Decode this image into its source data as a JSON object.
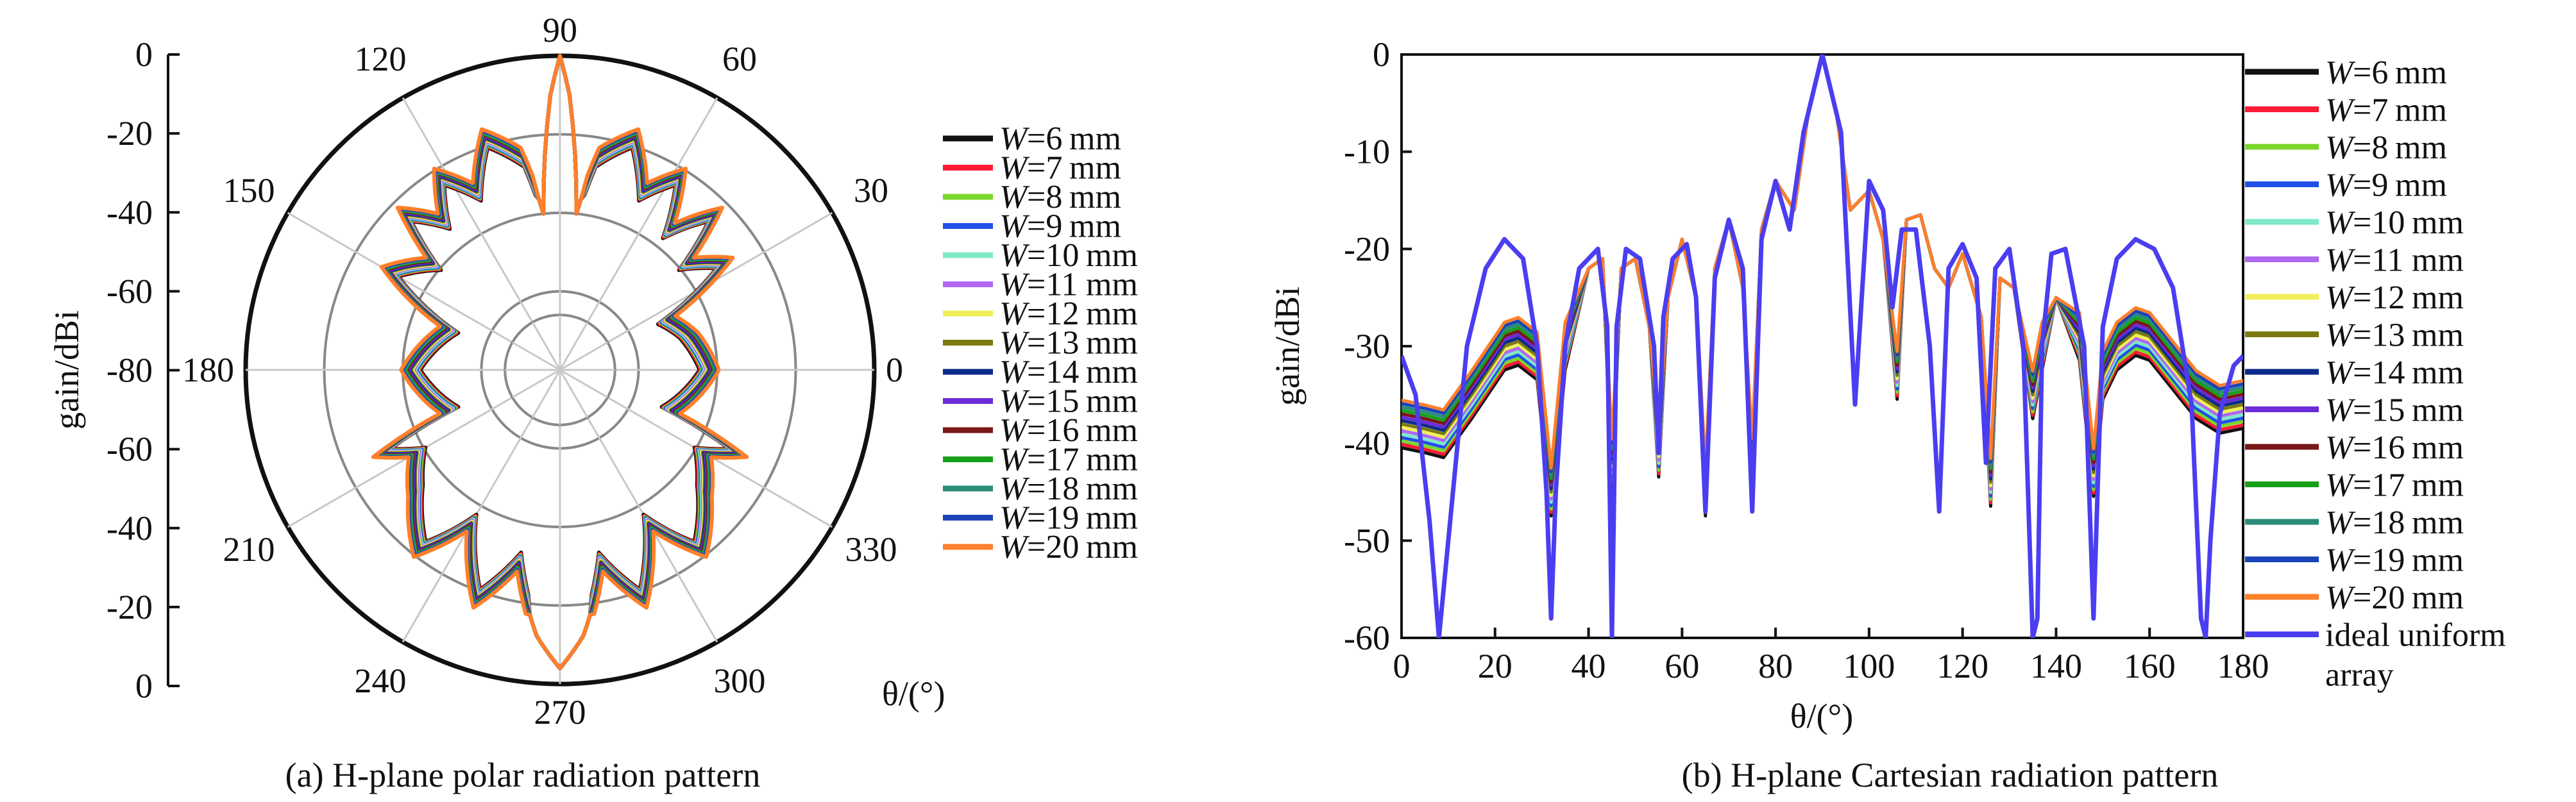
{
  "captions": {
    "polar": "(a) H-plane polar radiation pattern",
    "cartesian": "(b) H-plane Cartesian radiation pattern"
  },
  "legend": {
    "var": "W",
    "unit": "mm",
    "values": [
      "=6",
      "=7",
      "=8",
      "=9",
      "=10",
      "=11",
      "=12",
      "=13",
      "=14",
      "=15",
      "=16",
      "=17",
      "=18",
      "=19",
      "=20"
    ],
    "ideal_line1": "ideal uniform",
    "ideal_line2": "array"
  },
  "colors": {
    "series": [
      "#111111",
      "#ff1a35",
      "#7bd62a",
      "#1f4fe8",
      "#7fe8c8",
      "#b067f2",
      "#f0ef5a",
      "#7a7a10",
      "#0c2b8c",
      "#6c2bd8",
      "#7a1717",
      "#19a019",
      "#2b8c7a",
      "#1a44b8",
      "#ff7f2a"
    ],
    "ideal": "#4a3ef0",
    "grid": "#888888"
  },
  "chart_data": [
    {
      "type": "polar-line",
      "title": "(a) H-plane polar radiation pattern",
      "ylabel": "gain/dBi",
      "xlabel": "θ/(°)",
      "radial_ticks": [
        "0",
        "-20",
        "-40",
        "-60",
        "-80",
        "-60",
        "-40",
        "-20",
        "0"
      ],
      "angle_ticks": [
        "0",
        "30",
        "60",
        "90",
        "120",
        "150",
        "180",
        "210",
        "240",
        "270",
        "300",
        "330"
      ],
      "rlim": [
        -80,
        0
      ],
      "grid": true,
      "legend": "right",
      "series_names": [
        "W=6 mm",
        "W=7 mm",
        "W=8 mm",
        "W=9 mm",
        "W=10 mm",
        "W=11 mm",
        "W=12 mm",
        "W=13 mm",
        "W=14 mm",
        "W=15 mm",
        "W=16 mm",
        "W=17 mm",
        "W=18 mm",
        "W=19 mm",
        "W=20 mm"
      ],
      "series": [
        {
          "name": "W=20 mm",
          "theta": [
            0,
            15,
            25,
            33,
            40,
            45,
            52,
            58,
            65,
            72,
            80,
            84,
            88,
            90,
            92,
            96,
            100,
            108,
            115,
            122,
            128,
            135,
            140,
            150,
            160,
            170,
            180,
            190,
            200,
            205,
            210,
            220,
            232,
            240,
            250,
            258,
            265,
            270,
            275,
            282,
            290,
            300,
            308,
            320,
            330,
            335,
            340,
            350,
            360
          ],
          "gain": [
            -42,
            -46,
            -50,
            -30,
            -38,
            -24,
            -35,
            -22,
            -30,
            -18,
            -25,
            -40,
            -10,
            0,
            -10,
            -40,
            -25,
            -18,
            -30,
            -22,
            -32,
            -24,
            -38,
            -30,
            -50,
            -46,
            -42,
            -46,
            -50,
            -30,
            -38,
            -32,
            -22,
            -35,
            -18,
            -30,
            -12,
            -4,
            -12,
            -30,
            -18,
            -35,
            -22,
            -32,
            -38,
            -30,
            -50,
            -46,
            -42
          ]
        }
      ]
    },
    {
      "type": "line",
      "title": "(b) H-plane Cartesian radiation pattern",
      "xlabel": "θ/(°)",
      "ylabel": "gain/dBi",
      "xlim": [
        0,
        180
      ],
      "ylim": [
        -60,
        0
      ],
      "x_ticks": [
        "0",
        "20",
        "40",
        "60",
        "80",
        "100",
        "120",
        "140",
        "160",
        "180"
      ],
      "y_ticks": [
        "0",
        "-10",
        "-20",
        "-30",
        "-40",
        "-50",
        "-60"
      ],
      "grid": false,
      "legend": "right",
      "series": [
        {
          "name": "W=20 mm",
          "x": [
            0,
            5,
            9,
            15,
            22,
            25,
            29,
            32,
            35,
            40,
            43,
            45,
            47,
            50,
            53,
            55,
            57,
            60,
            63,
            65,
            67,
            70,
            73,
            75,
            77,
            80,
            84,
            87,
            90,
            93,
            96,
            100,
            103,
            106,
            108,
            111,
            114,
            117,
            120,
            124,
            126,
            128,
            131,
            135,
            137,
            140,
            145,
            148,
            150,
            153,
            157,
            160,
            165,
            170,
            175,
            180
          ],
          "y": [
            -38,
            -38.5,
            -39,
            -35,
            -30,
            -29.5,
            -31,
            -45,
            -30,
            -22,
            -21,
            -42,
            -22,
            -21,
            -28,
            -41,
            -25,
            -19,
            -25,
            -45,
            -22,
            -17,
            -24,
            -42,
            -18,
            -13,
            -16,
            -6,
            0,
            -6,
            -16,
            -14,
            -19,
            -33,
            -17,
            -16.5,
            -22,
            -24,
            -20.5,
            -27,
            -44,
            -23,
            -24,
            -35,
            -30,
            -25,
            -29,
            -43,
            -33,
            -30,
            -28.5,
            -29,
            -32,
            -35,
            -36.5,
            -36
          ]
        },
        {
          "name": "ideal uniform array",
          "x": [
            0,
            3,
            6,
            8,
            10,
            14,
            18,
            22,
            26,
            29,
            31,
            32,
            33,
            35,
            38,
            42,
            44,
            45,
            46,
            48,
            51,
            54,
            55,
            56,
            58,
            61,
            63,
            65,
            67,
            70,
            73,
            75,
            77,
            80,
            83,
            86,
            90,
            94,
            97,
            100,
            103,
            105,
            107,
            110,
            113,
            115,
            117,
            120,
            123,
            125,
            127,
            130,
            133,
            135,
            136,
            137,
            139,
            142,
            146,
            148,
            150,
            153,
            157,
            161,
            165,
            169,
            171,
            172,
            173,
            175,
            178,
            180
          ],
          "y": [
            -31,
            -35,
            -48,
            -60,
            -50,
            -30,
            -22,
            -19,
            -21,
            -30,
            -45,
            -58,
            -45,
            -30,
            -22,
            -20,
            -28,
            -60,
            -28,
            -20,
            -21,
            -30,
            -41,
            -27,
            -21,
            -19.5,
            -25,
            -47,
            -23,
            -17,
            -22,
            -47,
            -19,
            -13,
            -18,
            -8,
            0,
            -8,
            -36,
            -13,
            -16,
            -26,
            -18,
            -18,
            -30,
            -47,
            -22,
            -19.5,
            -23,
            -42,
            -22,
            -20,
            -30,
            -60,
            -58,
            -30,
            -20.5,
            -20,
            -30,
            -58,
            -28,
            -21,
            -19,
            -20,
            -24,
            -36,
            -58,
            -60,
            -50,
            -37,
            -32,
            -31
          ]
        }
      ]
    }
  ]
}
